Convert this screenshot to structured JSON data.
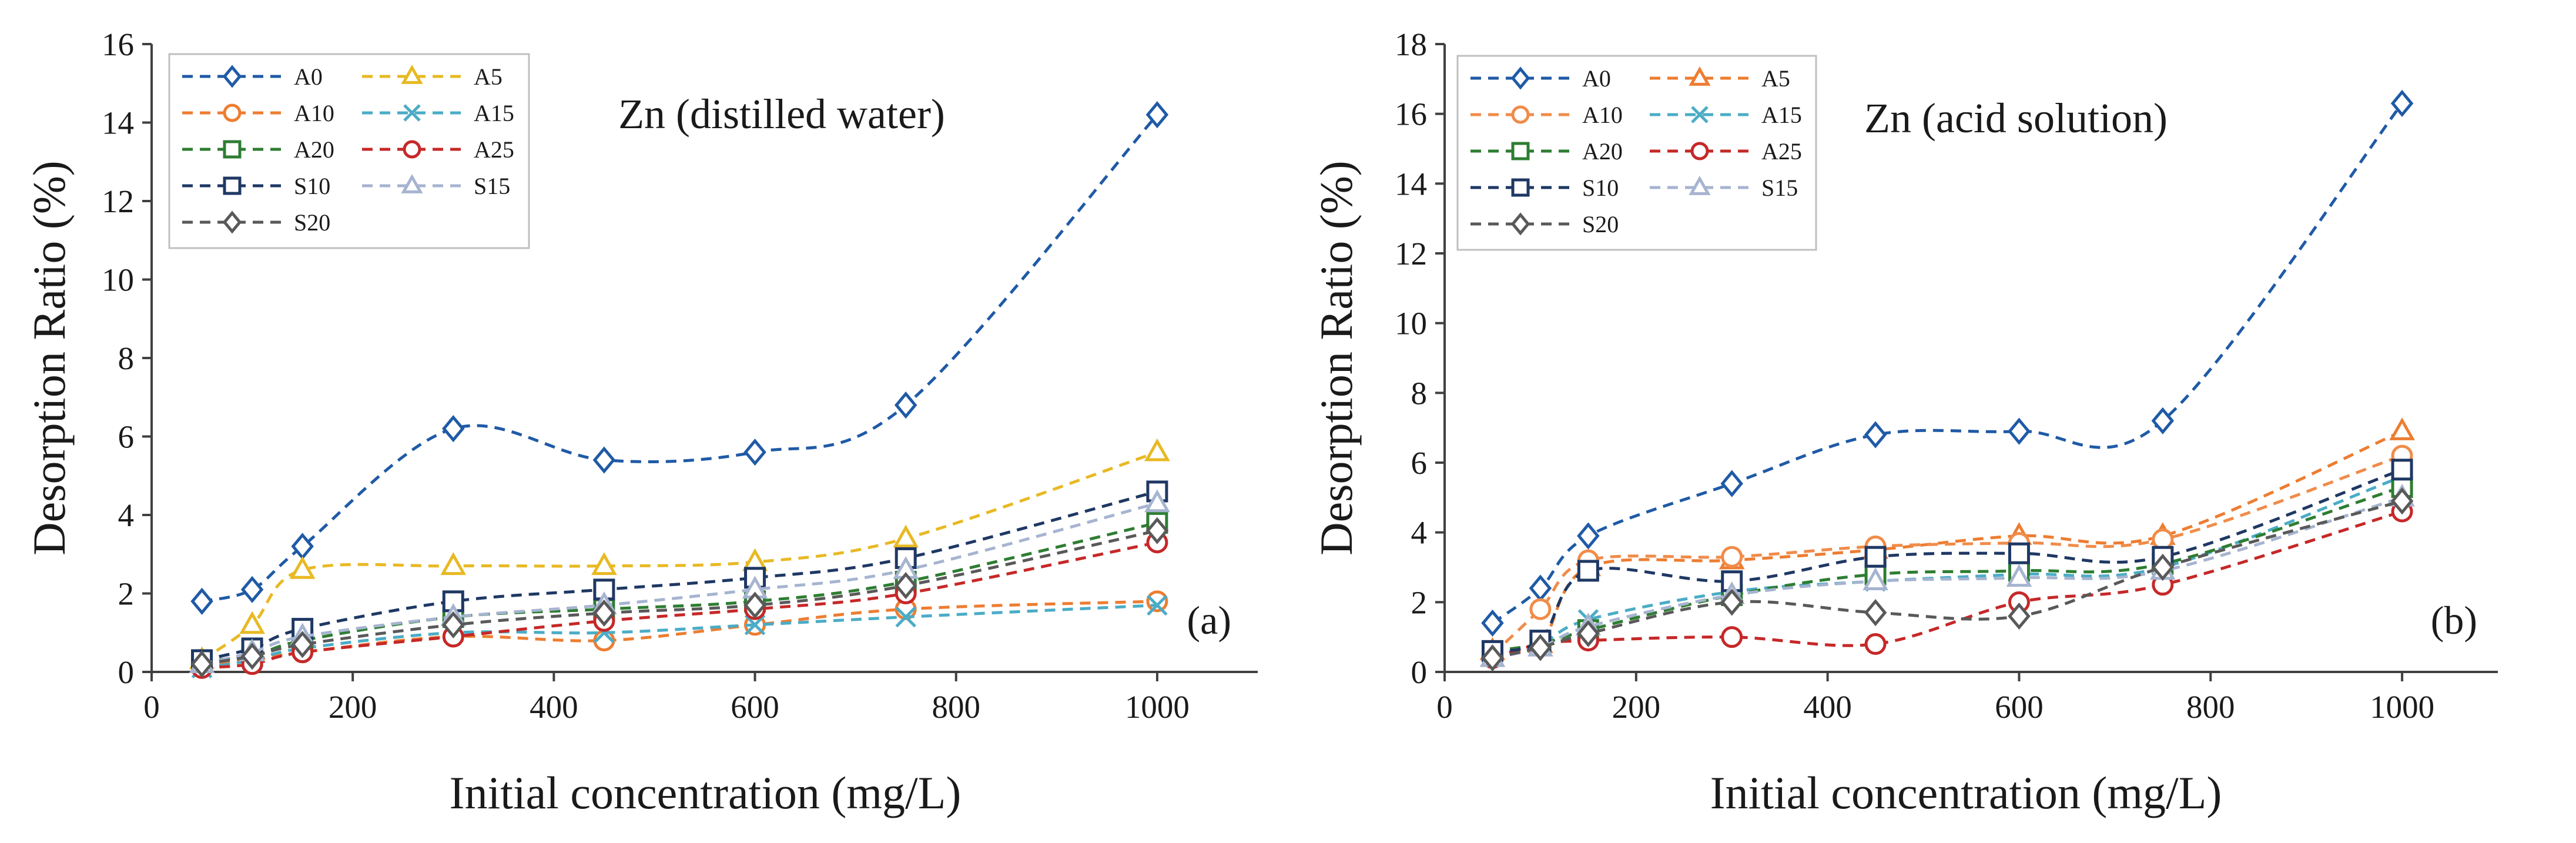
{
  "chart_data": [
    {
      "type": "line",
      "panel": "a",
      "title": "Zn (distilled water)",
      "tag": "(a)",
      "xlabel": "Initial concentration (mg/L)",
      "ylabel": "Desorption Ratio (%)",
      "xlim": [
        0,
        1100
      ],
      "ylim": [
        0,
        16
      ],
      "xticks": [
        0,
        200,
        400,
        600,
        800,
        1000
      ],
      "yticks": [
        0,
        2,
        4,
        6,
        8,
        10,
        12,
        14,
        16
      ],
      "grid": false,
      "legend_position": "top-left",
      "x": [
        50,
        100,
        150,
        300,
        450,
        600,
        750,
        1000
      ],
      "series": [
        {
          "name": "A0",
          "color": "#1f5aa6",
          "marker": "diamond",
          "values": [
            1.8,
            2.1,
            3.2,
            6.2,
            5.4,
            5.6,
            6.8,
            14.2
          ]
        },
        {
          "name": "A5",
          "color": "#e8b923",
          "marker": "triangle",
          "values": [
            0.3,
            1.2,
            2.6,
            2.7,
            2.7,
            2.8,
            3.4,
            5.6
          ]
        },
        {
          "name": "A10",
          "color": "#ed7d31",
          "marker": "circle",
          "values": [
            0.2,
            0.3,
            0.5,
            0.9,
            0.8,
            1.2,
            1.6,
            1.8
          ]
        },
        {
          "name": "A15",
          "color": "#4bacc6",
          "marker": "x",
          "values": [
            0.1,
            0.3,
            0.6,
            1.0,
            1.0,
            1.2,
            1.4,
            1.7
          ]
        },
        {
          "name": "A20",
          "color": "#2e7d32",
          "marker": "square",
          "values": [
            0.3,
            0.4,
            0.8,
            1.4,
            1.6,
            1.8,
            2.3,
            3.8
          ]
        },
        {
          "name": "A25",
          "color": "#c62828",
          "marker": "circle",
          "values": [
            0.1,
            0.2,
            0.5,
            0.9,
            1.3,
            1.6,
            2.0,
            3.3
          ]
        },
        {
          "name": "S10",
          "color": "#1f3864",
          "marker": "square",
          "values": [
            0.3,
            0.6,
            1.1,
            1.8,
            2.1,
            2.4,
            2.9,
            4.6
          ]
        },
        {
          "name": "S15",
          "color": "#a6b4d0",
          "marker": "triangle",
          "values": [
            0.2,
            0.5,
            0.9,
            1.4,
            1.7,
            2.1,
            2.6,
            4.3
          ]
        },
        {
          "name": "S20",
          "color": "#595959",
          "marker": "diamond",
          "values": [
            0.2,
            0.4,
            0.7,
            1.2,
            1.5,
            1.7,
            2.2,
            3.6
          ]
        }
      ]
    },
    {
      "type": "line",
      "panel": "b",
      "title": "Zn (acid solution)",
      "tag": "(b)",
      "xlabel": "Initial concentration (mg/L)",
      "ylabel": "Desorption Ratio (%)",
      "xlim": [
        0,
        1100
      ],
      "ylim": [
        0,
        18
      ],
      "xticks": [
        0,
        200,
        400,
        600,
        800,
        1000
      ],
      "yticks": [
        0,
        2,
        4,
        6,
        8,
        10,
        12,
        14,
        16,
        18
      ],
      "grid": false,
      "legend_position": "top-left",
      "x": [
        50,
        100,
        150,
        300,
        450,
        600,
        750,
        1000
      ],
      "series": [
        {
          "name": "A0",
          "color": "#1f5aa6",
          "marker": "diamond",
          "values": [
            1.4,
            2.4,
            3.9,
            5.4,
            6.8,
            6.9,
            7.2,
            16.3
          ]
        },
        {
          "name": "A5",
          "color": "#ed7d31",
          "marker": "triangle",
          "values": [
            0.6,
            0.8,
            3.0,
            3.2,
            3.5,
            3.9,
            3.9,
            6.9
          ]
        },
        {
          "name": "A10",
          "color": "#f08c4a",
          "marker": "circle",
          "values": [
            0.5,
            1.8,
            3.2,
            3.3,
            3.6,
            3.7,
            3.8,
            6.2
          ]
        },
        {
          "name": "A15",
          "color": "#4bacc6",
          "marker": "x",
          "values": [
            0.5,
            0.8,
            1.5,
            2.3,
            2.6,
            2.8,
            3.0,
            5.6
          ]
        },
        {
          "name": "A20",
          "color": "#2e7d32",
          "marker": "square",
          "values": [
            0.6,
            0.8,
            1.2,
            2.2,
            2.8,
            2.9,
            3.1,
            5.3
          ]
        },
        {
          "name": "A25",
          "color": "#c62828",
          "marker": "circle",
          "values": [
            0.4,
            0.8,
            0.9,
            1.0,
            0.8,
            2.0,
            2.5,
            4.6
          ]
        },
        {
          "name": "S10",
          "color": "#1f3864",
          "marker": "square",
          "values": [
            0.6,
            0.9,
            2.9,
            2.6,
            3.3,
            3.4,
            3.3,
            5.8
          ]
        },
        {
          "name": "S15",
          "color": "#a6b4d0",
          "marker": "triangle",
          "values": [
            0.4,
            0.7,
            1.3,
            2.2,
            2.6,
            2.7,
            2.9,
            5.0
          ]
        },
        {
          "name": "S20",
          "color": "#595959",
          "marker": "diamond",
          "values": [
            0.4,
            0.7,
            1.1,
            2.0,
            1.7,
            1.6,
            3.0,
            4.9
          ]
        }
      ]
    }
  ]
}
